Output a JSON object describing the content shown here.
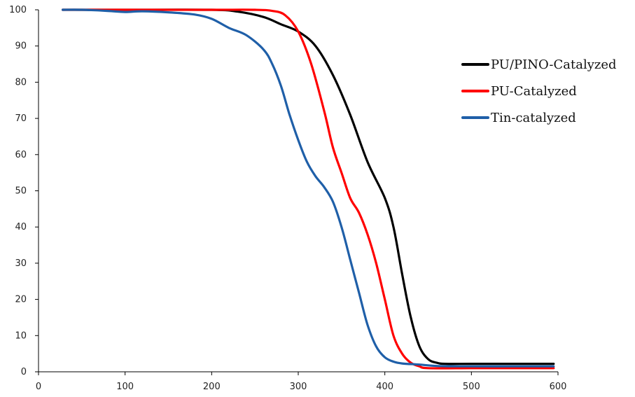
{
  "chart_data": {
    "type": "line",
    "title": "",
    "xlabel": "",
    "ylabel": "",
    "xlim": [
      0,
      600
    ],
    "ylim": [
      0,
      100
    ],
    "x_ticks": [
      0,
      100,
      200,
      300,
      400,
      500,
      600
    ],
    "y_ticks": [
      0,
      10,
      20,
      30,
      40,
      50,
      60,
      70,
      80,
      90,
      100
    ],
    "grid": false,
    "legend_position": "right",
    "series": [
      {
        "name": "PU/PINO-Catalyzed",
        "color": "#000000",
        "x": [
          28,
          100,
          200,
          230,
          260,
          280,
          300,
          320,
          340,
          360,
          380,
          400,
          410,
          420,
          430,
          440,
          450,
          460,
          470,
          500,
          550,
          595
        ],
        "y": [
          100,
          100,
          100,
          99.5,
          98,
          96,
          94,
          90,
          82,
          71,
          58,
          48,
          40,
          27,
          15,
          7,
          3.5,
          2.5,
          2.2,
          2.2,
          2.2,
          2.2
        ]
      },
      {
        "name": "PU-Catalyzed",
        "color": "#ff0000",
        "x": [
          28,
          100,
          200,
          250,
          270,
          285,
          300,
          315,
          330,
          340,
          350,
          360,
          370,
          380,
          390,
          400,
          410,
          420,
          430,
          440,
          450,
          500,
          550,
          595
        ],
        "y": [
          100,
          100,
          100,
          100,
          99.7,
          98.5,
          94,
          85,
          72,
          62,
          55,
          48,
          44,
          38,
          30,
          20,
          10,
          5,
          2.5,
          1.5,
          1,
          1,
          1,
          1
        ]
      },
      {
        "name": "Tin-catalyzed",
        "color": "#1f5fa8",
        "x": [
          28,
          50,
          80,
          100,
          120,
          150,
          180,
          200,
          220,
          240,
          260,
          270,
          280,
          290,
          300,
          310,
          320,
          330,
          340,
          350,
          360,
          370,
          380,
          390,
          400,
          410,
          420,
          440,
          460,
          500,
          550,
          595
        ],
        "y": [
          100,
          100,
          99.7,
          99.4,
          99.6,
          99.3,
          98.7,
          97.5,
          95,
          93,
          89,
          85,
          79,
          71,
          64,
          58,
          54,
          51,
          47,
          40,
          31,
          22,
          13,
          7,
          4,
          2.8,
          2.3,
          2,
          1.6,
          1.5,
          1.5,
          1.5
        ]
      }
    ]
  }
}
